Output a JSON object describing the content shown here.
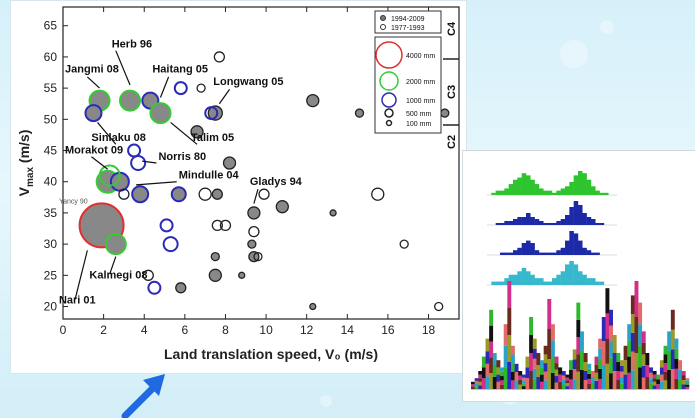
{
  "chart_data": [
    {
      "type": "scatter",
      "xlabel": "Land translation speed, V₀ (m/s)",
      "ylabel_base": "V",
      "ylabel_sub": "max",
      "ylabel_unit": " (m/s)",
      "xlim": [
        0,
        19.5
      ],
      "ylim": [
        18,
        68
      ],
      "xticks": [
        0,
        2,
        4,
        6,
        8,
        10,
        12,
        14,
        16,
        18
      ],
      "yticks": [
        20,
        25,
        30,
        35,
        40,
        45,
        50,
        55,
        60,
        65
      ],
      "categories_right": [
        "C4",
        "C3",
        "C2"
      ],
      "legend": {
        "series": [
          {
            "label": "1994-2009",
            "style": "filled"
          },
          {
            "label": "1977-1993",
            "style": "open"
          }
        ],
        "sizes": [
          {
            "label": "4000 mm",
            "color": "#e03030"
          },
          {
            "label": "2000 mm",
            "color": "#33cc33"
          },
          {
            "label": "1000 mm",
            "color": "#2b2bb8"
          },
          {
            "label": "500 mm",
            "color": "#222222"
          },
          {
            "label": "100 mm",
            "color": "#222222"
          }
        ]
      },
      "points": [
        {
          "x": 1.8,
          "y": 53,
          "r": 10,
          "fill": "#888888",
          "ring": "#33cc33"
        },
        {
          "x": 3.3,
          "y": 53,
          "r": 10,
          "fill": "#888888",
          "ring": "#33cc33"
        },
        {
          "x": 4.3,
          "y": 53,
          "r": 8,
          "fill": "#888888",
          "ring": "#2b2bb8"
        },
        {
          "x": 4.8,
          "y": 51,
          "r": 10,
          "fill": "#888888",
          "ring": "#33cc33"
        },
        {
          "x": 1.5,
          "y": 51,
          "r": 8,
          "fill": "#888888",
          "ring": "#2b2bb8"
        },
        {
          "x": 2.2,
          "y": 40,
          "r": 11,
          "fill": "#888888",
          "ring": "#33cc33"
        },
        {
          "x": 2.8,
          "y": 40,
          "r": 9,
          "fill": "#888888",
          "ring": "#2b2bb8"
        },
        {
          "x": 1.9,
          "y": 33,
          "r": 22,
          "fill": "#888888",
          "ring": "#e03030"
        },
        {
          "x": 2.6,
          "y": 30,
          "r": 10,
          "fill": "#888888",
          "ring": "#33cc33"
        },
        {
          "x": 3.8,
          "y": 38,
          "r": 8,
          "fill": "#888888",
          "ring": "#2b2bb8"
        },
        {
          "x": 5.7,
          "y": 38,
          "r": 7,
          "fill": "#888888",
          "ring": "#2b2bb8"
        },
        {
          "x": 6.6,
          "y": 48,
          "r": 6,
          "fill": "#888888",
          "ring": "#222222"
        },
        {
          "x": 7.5,
          "y": 51,
          "r": 7,
          "fill": "#888888",
          "ring": "#222222"
        },
        {
          "x": 8.2,
          "y": 43,
          "r": 6,
          "fill": "#888888",
          "ring": "#222222"
        },
        {
          "x": 7.6,
          "y": 38,
          "r": 5,
          "fill": "#888888",
          "ring": "#222222"
        },
        {
          "x": 9.4,
          "y": 35,
          "r": 6,
          "fill": "#888888",
          "ring": "#222222"
        },
        {
          "x": 10.8,
          "y": 36,
          "r": 6,
          "fill": "#888888",
          "ring": "#222222"
        },
        {
          "x": 9.3,
          "y": 30,
          "r": 4,
          "fill": "#888888",
          "ring": "#222222"
        },
        {
          "x": 9.4,
          "y": 28,
          "r": 5,
          "fill": "#888888",
          "ring": "#222222"
        },
        {
          "x": 7.5,
          "y": 28,
          "r": 4,
          "fill": "#888888",
          "ring": "#222222"
        },
        {
          "x": 7.5,
          "y": 25,
          "r": 6,
          "fill": "#888888",
          "ring": "#222222"
        },
        {
          "x": 8.8,
          "y": 25,
          "r": 3,
          "fill": "#888888",
          "ring": "#222222"
        },
        {
          "x": 5.8,
          "y": 23,
          "r": 5,
          "fill": "#888888",
          "ring": "#222222"
        },
        {
          "x": 12.3,
          "y": 53,
          "r": 6,
          "fill": "#888888",
          "ring": "#222222"
        },
        {
          "x": 14.6,
          "y": 51,
          "r": 4,
          "fill": "#888888",
          "ring": "#222222"
        },
        {
          "x": 18.8,
          "y": 51,
          "r": 4,
          "fill": "#888888",
          "ring": "#222222"
        },
        {
          "x": 13.3,
          "y": 35,
          "r": 3,
          "fill": "#888888",
          "ring": "#222222"
        },
        {
          "x": 12.3,
          "y": 20,
          "r": 3,
          "fill": "#888888",
          "ring": "#222222"
        },
        {
          "x": 7.7,
          "y": 60,
          "r": 5,
          "fill": "none",
          "ring": "#222222"
        },
        {
          "x": 5.8,
          "y": 55,
          "r": 6,
          "fill": "none",
          "ring": "#2b2bb8"
        },
        {
          "x": 6.8,
          "y": 55,
          "r": 4,
          "fill": "none",
          "ring": "#222222"
        },
        {
          "x": 7.3,
          "y": 51,
          "r": 6,
          "fill": "none",
          "ring": "#2b2bb8"
        },
        {
          "x": 3.5,
          "y": 45,
          "r": 6,
          "fill": "none",
          "ring": "#2b2bb8"
        },
        {
          "x": 3.7,
          "y": 43,
          "r": 7,
          "fill": "none",
          "ring": "#2b2bb8"
        },
        {
          "x": 2.3,
          "y": 41,
          "r": 10,
          "fill": "none",
          "ring": "#33cc33"
        },
        {
          "x": 3.0,
          "y": 38,
          "r": 5,
          "fill": "none",
          "ring": "#222222"
        },
        {
          "x": 7.0,
          "y": 38,
          "r": 6,
          "fill": "none",
          "ring": "#222222"
        },
        {
          "x": 9.9,
          "y": 38,
          "r": 5,
          "fill": "none",
          "ring": "#222222"
        },
        {
          "x": 15.5,
          "y": 38,
          "r": 6,
          "fill": "none",
          "ring": "#222222"
        },
        {
          "x": 5.1,
          "y": 33,
          "r": 6,
          "fill": "none",
          "ring": "#2b2bb8"
        },
        {
          "x": 5.3,
          "y": 30,
          "r": 7,
          "fill": "none",
          "ring": "#2b2bb8"
        },
        {
          "x": 7.6,
          "y": 33,
          "r": 5,
          "fill": "none",
          "ring": "#222222"
        },
        {
          "x": 8.0,
          "y": 33,
          "r": 5,
          "fill": "none",
          "ring": "#222222"
        },
        {
          "x": 9.4,
          "y": 32,
          "r": 5,
          "fill": "none",
          "ring": "#222222"
        },
        {
          "x": 16.8,
          "y": 30,
          "r": 4,
          "fill": "none",
          "ring": "#222222"
        },
        {
          "x": 9.6,
          "y": 28,
          "r": 4,
          "fill": "none",
          "ring": "#222222"
        },
        {
          "x": 4.2,
          "y": 25,
          "r": 5,
          "fill": "none",
          "ring": "#222222"
        },
        {
          "x": 4.5,
          "y": 23,
          "r": 6,
          "fill": "none",
          "ring": "#2b2bb8"
        },
        {
          "x": 18.5,
          "y": 20,
          "r": 4,
          "fill": "none",
          "ring": "#222222"
        }
      ],
      "annotations": [
        {
          "text": "Herb 96",
          "x": 2.4,
          "y": 61.5
        },
        {
          "text": "Jangmi 08",
          "x": 0.1,
          "y": 57.5
        },
        {
          "text": "Haitang 05",
          "x": 4.4,
          "y": 57.5
        },
        {
          "text": "Longwang 05",
          "x": 7.4,
          "y": 55.5
        },
        {
          "text": "Sinlaku 08",
          "x": 1.4,
          "y": 46.5
        },
        {
          "text": "Talim 05",
          "x": 6.3,
          "y": 46.5
        },
        {
          "text": "Morakot 09",
          "x": 0.1,
          "y": 44.5
        },
        {
          "text": "Norris 80",
          "x": 4.7,
          "y": 43.5
        },
        {
          "text": "Mindulle 04",
          "x": 5.7,
          "y": 40.5
        },
        {
          "text": "Gladys 94",
          "x": 9.2,
          "y": 39.5
        },
        {
          "text": "Yancy 90",
          "x": -0.2,
          "y": 36.5,
          "small": true
        },
        {
          "text": "Kalmegi 08",
          "x": 1.3,
          "y": 24.5
        },
        {
          "text": "Nari 01",
          "x": -0.2,
          "y": 20.5
        }
      ]
    },
    {
      "type": "bar",
      "panel_title": "",
      "panels": [
        {
          "color": "#2ec42e",
          "values": [
            0,
            1,
            2,
            2,
            3,
            5,
            7,
            8,
            10,
            9,
            7,
            5,
            3,
            2,
            2,
            1,
            2,
            3,
            4,
            6,
            9,
            11,
            10,
            7,
            4,
            2,
            1,
            1,
            0,
            0
          ]
        },
        {
          "color": "#1d2aa8",
          "values": [
            0,
            0,
            1,
            1,
            2,
            2,
            3,
            4,
            4,
            6,
            4,
            3,
            2,
            1,
            1,
            1,
            2,
            3,
            5,
            9,
            12,
            10,
            6,
            4,
            3,
            1,
            1,
            0,
            0,
            0
          ]
        },
        {
          "color": "#1d2aa8",
          "values": [
            0,
            0,
            0,
            1,
            1,
            1,
            2,
            3,
            5,
            6,
            5,
            2,
            1,
            1,
            1,
            1,
            2,
            3,
            6,
            10,
            9,
            6,
            3,
            2,
            1,
            1,
            0,
            0,
            0,
            0
          ]
        },
        {
          "color": "#37b8cc",
          "values": [
            0,
            1,
            1,
            1,
            2,
            3,
            3,
            4,
            5,
            4,
            3,
            2,
            2,
            1,
            1,
            2,
            3,
            4,
            6,
            7,
            6,
            4,
            3,
            2,
            2,
            1,
            1,
            0,
            0,
            0
          ]
        }
      ]
    },
    {
      "type": "bar",
      "stacked": true,
      "colors": [
        "#6a2b1e",
        "#2db82d",
        "#2b2bb8",
        "#d22f8a",
        "#2aa3c9",
        "#9a9a2a",
        "#111111",
        "#e26b6b"
      ],
      "values": [
        2,
        3,
        5,
        9,
        14,
        22,
        10,
        8,
        6,
        18,
        30,
        12,
        7,
        5,
        4,
        9,
        20,
        14,
        10,
        8,
        12,
        25,
        18,
        9,
        6,
        5,
        4,
        8,
        11,
        24,
        16,
        10,
        7,
        5,
        9,
        14,
        20,
        28,
        22,
        15,
        10,
        8,
        12,
        18,
        26,
        30,
        24,
        16,
        10,
        6,
        5,
        4,
        8,
        12,
        16,
        22,
        14,
        8,
        5,
        3
      ]
    }
  ]
}
